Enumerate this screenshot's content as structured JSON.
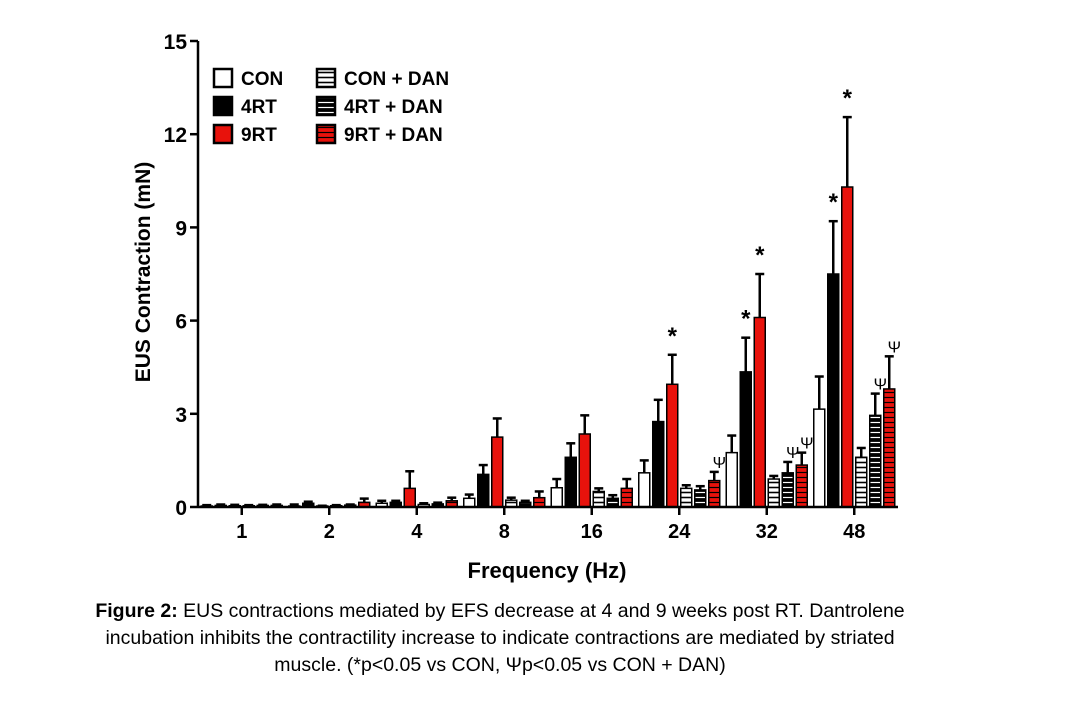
{
  "chart_data": {
    "type": "bar",
    "xlabel": "Frequency (Hz)",
    "ylabel": "EUS Contraction (mN)",
    "ylim": [
      0,
      15
    ],
    "yticks": [
      "0",
      "3",
      "6",
      "9",
      "12",
      "15"
    ],
    "categories": [
      "1",
      "2",
      "4",
      "8",
      "16",
      "24",
      "32",
      "48"
    ],
    "legend_placement": "top-left",
    "grid": false,
    "series": [
      {
        "name": "CON",
        "fill": "white",
        "color": "#ffffff",
        "values": [
          0.03,
          0.03,
          0.12,
          0.28,
          0.62,
          1.1,
          1.75,
          3.15
        ],
        "errors": [
          0.03,
          0.05,
          0.08,
          0.12,
          0.28,
          0.4,
          0.55,
          1.05
        ]
      },
      {
        "name": "4RT",
        "fill": "solid",
        "color": "#000000",
        "values": [
          0.05,
          0.12,
          0.15,
          1.05,
          1.6,
          2.75,
          4.35,
          7.5
        ],
        "errors": [
          0.03,
          0.05,
          0.05,
          0.3,
          0.45,
          0.7,
          1.1,
          1.7
        ]
      },
      {
        "name": "9RT",
        "fill": "solid",
        "color": "#e8120c",
        "values": [
          0.04,
          0.02,
          0.6,
          2.25,
          2.35,
          3.95,
          6.1,
          10.3
        ],
        "errors": [
          0.03,
          0.02,
          0.55,
          0.6,
          0.6,
          0.95,
          1.4,
          2.25
        ]
      },
      {
        "name": "CON + DAN",
        "fill": "hatched",
        "color": "#ffffff",
        "values": [
          0.04,
          0.04,
          0.08,
          0.22,
          0.5,
          0.6,
          0.9,
          1.6
        ],
        "errors": [
          0.02,
          0.02,
          0.04,
          0.08,
          0.1,
          0.1,
          0.1,
          0.3
        ]
      },
      {
        "name": "4RT + DAN",
        "fill": "hatched",
        "color": "#000000",
        "values": [
          0.05,
          0.06,
          0.1,
          0.15,
          0.28,
          0.55,
          1.1,
          2.95
        ],
        "errors": [
          0.02,
          0.02,
          0.04,
          0.05,
          0.1,
          0.12,
          0.35,
          0.7
        ]
      },
      {
        "name": "9RT + DAN",
        "fill": "hatched",
        "color": "#e8120c",
        "values": [
          0.05,
          0.15,
          0.2,
          0.3,
          0.6,
          0.85,
          1.35,
          3.8
        ],
        "errors": [
          0.03,
          0.12,
          0.1,
          0.2,
          0.3,
          0.28,
          0.4,
          1.05
        ]
      }
    ],
    "annotations": [
      {
        "series": "9RT",
        "category": "24",
        "text": "*"
      },
      {
        "series": "4RT",
        "category": "32",
        "text": "*"
      },
      {
        "series": "9RT",
        "category": "32",
        "text": "*"
      },
      {
        "series": "4RT",
        "category": "48",
        "text": "*"
      },
      {
        "series": "9RT",
        "category": "48",
        "text": "*"
      },
      {
        "series": "9RT + DAN",
        "category": "24",
        "text": "Ψ"
      },
      {
        "series": "4RT + DAN",
        "category": "32",
        "text": "Ψ"
      },
      {
        "series": "9RT + DAN",
        "category": "32",
        "text": "Ψ"
      },
      {
        "series": "4RT + DAN",
        "category": "48",
        "text": "Ψ"
      },
      {
        "series": "9RT + DAN",
        "category": "48",
        "text": "Ψ"
      }
    ]
  },
  "caption": {
    "label": "Figure 2:",
    "line1": " EUS contractions mediated by EFS decrease at 4 and 9 weeks post RT. Dantrolene",
    "line2": "incubation inhibits the contractility increase to indicate contractions are mediated by striated",
    "line3": "muscle. (*p<0.05 vs CON, Ψp<0.05 vs CON + DAN)"
  }
}
